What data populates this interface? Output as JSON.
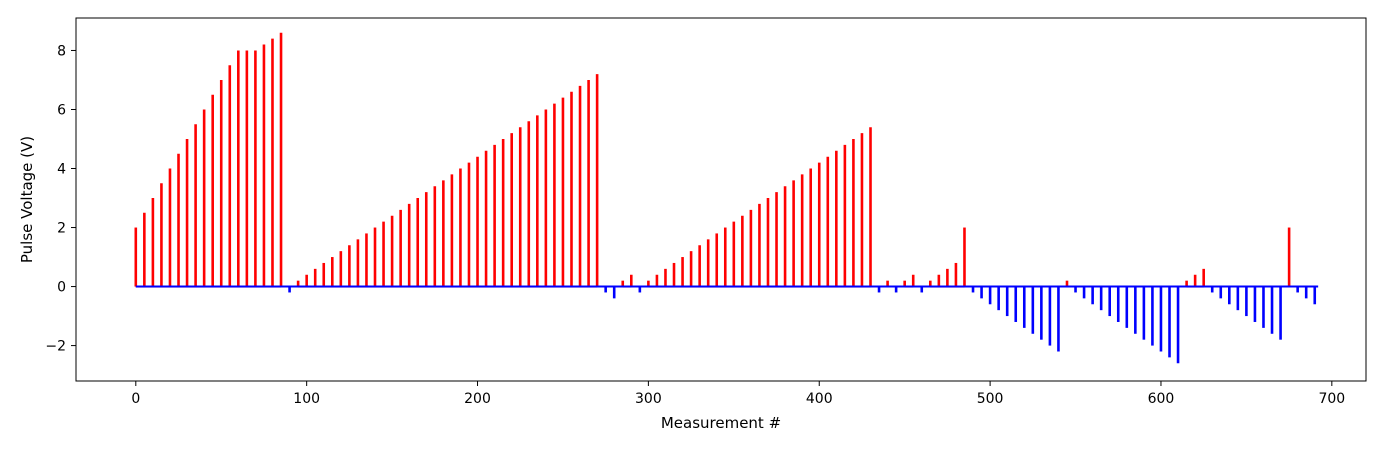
{
  "chart_data": {
    "type": "bar",
    "title": "",
    "xlabel": "Measurement #",
    "ylabel": "Pulse Voltage (V)",
    "xlim": [
      -35,
      720
    ],
    "ylim": [
      -3.2,
      9.1
    ],
    "x_ticks": [
      0,
      100,
      200,
      300,
      400,
      500,
      600,
      700
    ],
    "y_ticks": [
      -2,
      0,
      2,
      4,
      6,
      8
    ],
    "x_tick_labels": [
      "0",
      "100",
      "200",
      "300",
      "400",
      "500",
      "600",
      "700"
    ],
    "y_tick_labels": [
      "−2",
      "0",
      "2",
      "4",
      "6",
      "8"
    ],
    "grid": false,
    "colors": {
      "positive": "#ff0000",
      "negative": "#0000ff",
      "baseline": "#0000ff"
    },
    "x": [
      0,
      5,
      10,
      15,
      20,
      25,
      30,
      35,
      40,
      45,
      50,
      55,
      60,
      65,
      70,
      75,
      80,
      85,
      90,
      95,
      100,
      105,
      110,
      115,
      120,
      125,
      130,
      135,
      140,
      145,
      150,
      155,
      160,
      165,
      170,
      175,
      180,
      185,
      190,
      195,
      200,
      205,
      210,
      215,
      220,
      225,
      230,
      235,
      240,
      245,
      250,
      255,
      260,
      265,
      270,
      275,
      280,
      285,
      290,
      295,
      300,
      305,
      310,
      315,
      320,
      325,
      330,
      335,
      340,
      345,
      350,
      355,
      360,
      365,
      370,
      375,
      380,
      385,
      390,
      395,
      400,
      405,
      410,
      415,
      420,
      425,
      430,
      435,
      440,
      445,
      450,
      455,
      460,
      465,
      470,
      475,
      480,
      485,
      490,
      495,
      500,
      505,
      510,
      515,
      520,
      525,
      530,
      535,
      540,
      545,
      550,
      555,
      560,
      565,
      570,
      575,
      580,
      585,
      590,
      595,
      600,
      605,
      610,
      615,
      620,
      625,
      630,
      635,
      640,
      645,
      650,
      655,
      660,
      665,
      670,
      675,
      680,
      685,
      690
    ],
    "values": [
      2.0,
      2.5,
      3.0,
      3.5,
      4.0,
      4.5,
      5.0,
      5.5,
      6.0,
      6.5,
      7.0,
      7.5,
      8.0,
      8.0,
      8.0,
      8.2,
      8.4,
      8.6,
      -0.2,
      0.2,
      0.4,
      0.6,
      0.8,
      1.0,
      1.2,
      1.4,
      1.6,
      1.8,
      2.0,
      2.2,
      2.4,
      2.6,
      2.8,
      3.0,
      3.2,
      3.4,
      3.6,
      3.8,
      4.0,
      4.2,
      4.4,
      4.6,
      4.8,
      5.0,
      5.2,
      5.4,
      5.6,
      5.8,
      6.0,
      6.2,
      6.4,
      6.6,
      6.8,
      7.0,
      7.2,
      -0.2,
      -0.4,
      0.2,
      0.4,
      -0.2,
      0.2,
      0.4,
      0.6,
      0.8,
      1.0,
      1.2,
      1.4,
      1.6,
      1.8,
      2.0,
      2.2,
      2.4,
      2.6,
      2.8,
      3.0,
      3.2,
      3.4,
      3.6,
      3.8,
      4.0,
      4.2,
      4.4,
      4.6,
      4.8,
      5.0,
      5.2,
      5.4,
      -0.2,
      0.2,
      -0.2,
      0.2,
      0.4,
      -0.2,
      0.2,
      0.4,
      0.6,
      0.8,
      2.0,
      -0.2,
      -0.4,
      -0.6,
      -0.8,
      -1.0,
      -1.2,
      -1.4,
      -1.6,
      -1.8,
      -2.0,
      -2.2,
      0.2,
      -0.2,
      -0.4,
      -0.6,
      -0.8,
      -1.0,
      -1.2,
      -1.4,
      -1.6,
      -1.8,
      -2.0,
      -2.2,
      -2.4,
      -2.6,
      0.2,
      0.4,
      0.6,
      -0.2,
      -0.4,
      -0.6,
      -0.8,
      -1.0,
      -1.2,
      -1.4,
      -1.6,
      -1.8,
      2.0,
      -0.2,
      -0.4,
      -0.6
    ],
    "baseline_range": [
      0,
      692
    ]
  }
}
